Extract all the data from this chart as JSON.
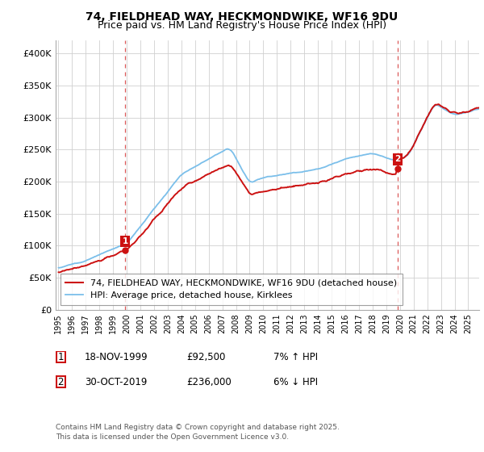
{
  "title": "74, FIELDHEAD WAY, HECKMONDWIKE, WF16 9DU",
  "subtitle": "Price paid vs. HM Land Registry's House Price Index (HPI)",
  "ylim": [
    0,
    420000
  ],
  "yticks": [
    0,
    50000,
    100000,
    150000,
    200000,
    250000,
    300000,
    350000,
    400000
  ],
  "ytick_labels": [
    "£0",
    "£50K",
    "£100K",
    "£150K",
    "£200K",
    "£250K",
    "£300K",
    "£350K",
    "£400K"
  ],
  "hpi_color": "#7bbfea",
  "price_color": "#cc1111",
  "dashed_line_color": "#cc1111",
  "grid_color": "#d0d0d0",
  "bg_color": "#ffffff",
  "legend_label_red": "74, FIELDHEAD WAY, HECKMONDWIKE, WF16 9DU (detached house)",
  "legend_label_blue": "HPI: Average price, detached house, Kirklees",
  "transaction_1_date": "18-NOV-1999",
  "transaction_1_price": 92500,
  "transaction_1_info": "7% ↑ HPI",
  "transaction_2_date": "30-OCT-2019",
  "transaction_2_price": 236000,
  "transaction_2_info": "6% ↓ HPI",
  "footer": "Contains HM Land Registry data © Crown copyright and database right 2025.\nThis data is licensed under the Open Government Licence v3.0.",
  "title_fontsize": 10,
  "subtitle_fontsize": 9,
  "tick_fontsize": 8,
  "legend_fontsize": 8,
  "footer_fontsize": 6.5,
  "transaction_fontsize": 8.5
}
